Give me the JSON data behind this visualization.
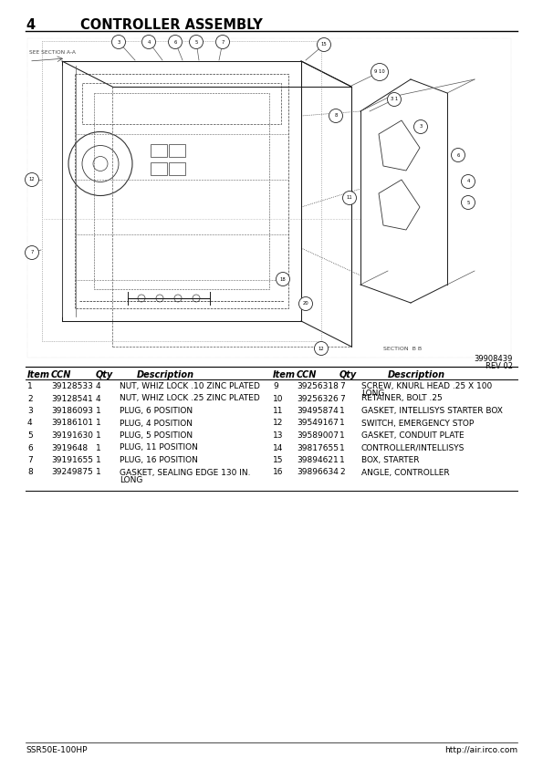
{
  "page_number": "4",
  "title": "CONTROLLER ASSEMBLY",
  "doc_number": "39908439",
  "rev": "REV 02",
  "footer_left": "SSR50E-100HP",
  "footer_right": "http://air.irco.com",
  "table_rows_left": [
    [
      "1",
      "39128533",
      "4",
      "NUT, WHIZ LOCK .10 ZINC PLATED"
    ],
    [
      "2",
      "39128541",
      "4",
      "NUT, WHIZ LOCK .25 ZINC PLATED"
    ],
    [
      "3",
      "39186093",
      "1",
      "PLUG, 6 POSITION"
    ],
    [
      "4",
      "39186101",
      "1",
      "PLUG, 4 POSITION"
    ],
    [
      "5",
      "39191630",
      "1",
      "PLUG, 5 POSITION"
    ],
    [
      "6",
      "3919648",
      "1",
      "PLUG, 11 POSITION"
    ],
    [
      "7",
      "39191655",
      "1",
      "PLUG, 16 POSITION"
    ],
    [
      "8",
      "39249875",
      "1",
      "GASKET, SEALING EDGE 130 IN.\nLONG"
    ]
  ],
  "table_rows_right": [
    [
      "9",
      "39256318",
      "7",
      "SCREW, KNURL HEAD .25 X 100\nLONG"
    ],
    [
      "10",
      "39256326",
      "7",
      "RETAINER, BOLT .25"
    ],
    [
      "11",
      "39495874",
      "1",
      "GASKET, INTELLISYS STARTER BOX"
    ],
    [
      "12",
      "39549167",
      "1",
      "SWITCH, EMERGENCY STOP"
    ],
    [
      "13",
      "39589007",
      "1",
      "GASKET, CONDUIT PLATE"
    ],
    [
      "14",
      "39817655",
      "1",
      "CONTROLLER/INTELLISYS"
    ],
    [
      "15",
      "39894621",
      "1",
      "BOX, STARTER"
    ],
    [
      "16",
      "39896634",
      "2",
      "ANGLE, CONTROLLER"
    ]
  ],
  "bg_color": "#ffffff",
  "text_color": "#000000"
}
